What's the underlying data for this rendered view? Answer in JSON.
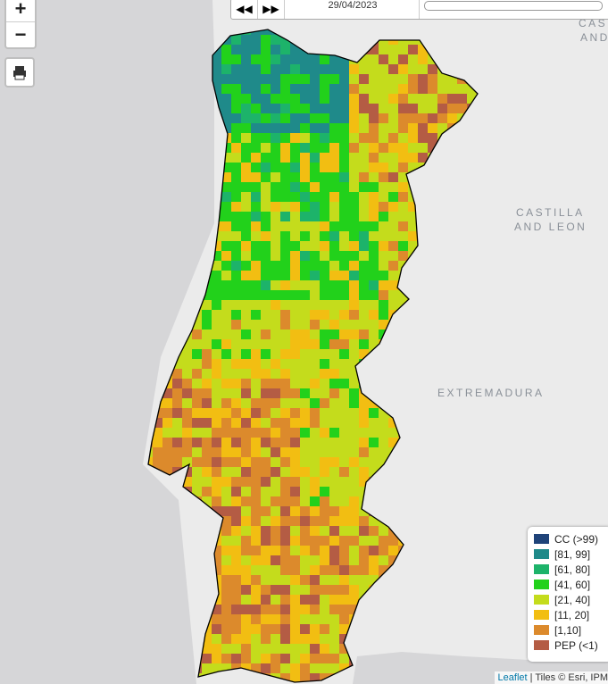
{
  "controls": {
    "zoom_in": "+",
    "zoom_out": "−",
    "date": "29/04/2023"
  },
  "map_labels": {
    "castilla_top": "CAS",
    "and_top": "AND",
    "castilla": "CASTILLA",
    "and_leon": "AND LEON",
    "extremadura": "EXTREMADURA"
  },
  "legend": [
    {
      "label": "CC (>99)",
      "color": "#1f4379"
    },
    {
      "label": "[81, 99]",
      "color": "#1f8a8a"
    },
    {
      "label": "[61, 80]",
      "color": "#1db36a"
    },
    {
      "label": "[41, 60]",
      "color": "#22d11b"
    },
    {
      "label": "[21, 40]",
      "color": "#c4dc1c"
    },
    {
      "label": "[11, 20]",
      "color": "#f2be12"
    },
    {
      "label": "[1,10]",
      "color": "#dc8a2c"
    },
    {
      "label": "PEP (<1)",
      "color": "#b45c44"
    }
  ],
  "attribution": {
    "link": "Leaflet",
    "text": "| Tiles © Esri, IPM"
  }
}
